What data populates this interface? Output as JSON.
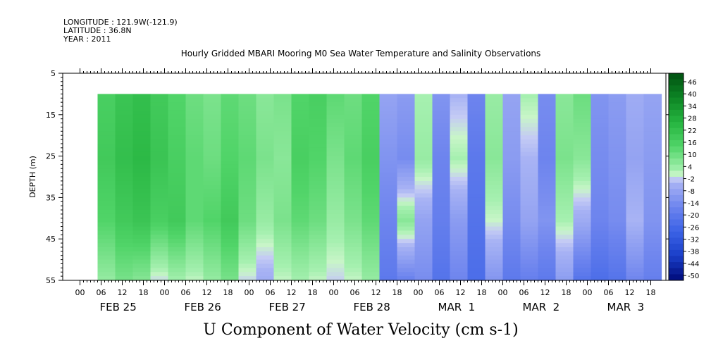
{
  "header": {
    "longitude": "LONGITUDE : 121.9W(-121.9)",
    "latitude": "LATITUDE : 36.8N",
    "year": "YEAR : 2011"
  },
  "chart_data": {
    "type": "heatmap",
    "title": "Hourly Gridded MBARI Mooring M0 Sea Water Temperature and Salinity Observations",
    "xlabel": "U Component of Water Velocity (cm s-1)",
    "ylabel": "DEPTH (m)",
    "ylim": [
      5,
      55
    ],
    "y_inverted": true,
    "y_ticks": [
      5,
      15,
      25,
      35,
      45,
      55
    ],
    "data_depth_range": [
      10,
      55
    ],
    "hour_tick_labels": [
      "00",
      "06",
      "12",
      "18",
      "00",
      "06",
      "12",
      "18",
      "00",
      "06",
      "12",
      "18",
      "00",
      "06",
      "12",
      "18",
      "00",
      "06",
      "12",
      "18",
      "00",
      "06",
      "12",
      "18",
      "00",
      "06",
      "12",
      "18"
    ],
    "day_labels": [
      "FEB 25",
      "FEB 26",
      "FEB 27",
      "FEB 28",
      "MAR  1",
      "MAR  2",
      "MAR  3"
    ],
    "colorbar": {
      "label_values": [
        46,
        40,
        34,
        28,
        22,
        16,
        10,
        4,
        -2,
        -8,
        -14,
        -20,
        -26,
        -32,
        -38,
        -44,
        -50
      ],
      "range": [
        -50,
        52
      ],
      "levels": 17
    },
    "time_hours": [
      5,
      10,
      15,
      20,
      25,
      30,
      35,
      40,
      45,
      50,
      55,
      60,
      65,
      70,
      75,
      80,
      85,
      90,
      95,
      100,
      105,
      110,
      115,
      120,
      125,
      130,
      135,
      140,
      145,
      150,
      155,
      160
    ],
    "velocity_profiles": {
      "depths": [
        10,
        25,
        40,
        55
      ],
      "columns": [
        [
          18,
          20,
          16,
          6
        ],
        [
          22,
          24,
          20,
          10
        ],
        [
          24,
          26,
          22,
          8
        ],
        [
          20,
          22,
          18,
          0
        ],
        [
          16,
          18,
          20,
          4
        ],
        [
          12,
          14,
          14,
          2
        ],
        [
          10,
          12,
          16,
          6
        ],
        [
          14,
          16,
          20,
          10
        ],
        [
          12,
          14,
          12,
          0
        ],
        [
          8,
          10,
          6,
          -4
        ],
        [
          10,
          8,
          10,
          2
        ],
        [
          16,
          18,
          14,
          4
        ],
        [
          18,
          16,
          12,
          2
        ],
        [
          14,
          10,
          6,
          0
        ],
        [
          12,
          14,
          10,
          2
        ],
        [
          16,
          18,
          14,
          6
        ],
        [
          -6,
          -10,
          -14,
          -18
        ],
        [
          -8,
          -12,
          8,
          -16
        ],
        [
          4,
          6,
          -6,
          -12
        ],
        [
          -10,
          -14,
          -16,
          -20
        ],
        [
          -2,
          4,
          -8,
          -14
        ],
        [
          -14,
          -18,
          -20,
          -22
        ],
        [
          6,
          8,
          2,
          -10
        ],
        [
          -6,
          -8,
          -12,
          -18
        ],
        [
          4,
          -2,
          -6,
          -16
        ],
        [
          -12,
          -14,
          -10,
          -18
        ],
        [
          8,
          10,
          4,
          -8
        ],
        [
          12,
          8,
          -4,
          -20
        ],
        [
          -10,
          -12,
          -14,
          -22
        ],
        [
          -8,
          -10,
          -12,
          -20
        ],
        [
          -4,
          -6,
          -2,
          -14
        ],
        [
          -6,
          -8,
          -10,
          -16
        ]
      ]
    }
  }
}
